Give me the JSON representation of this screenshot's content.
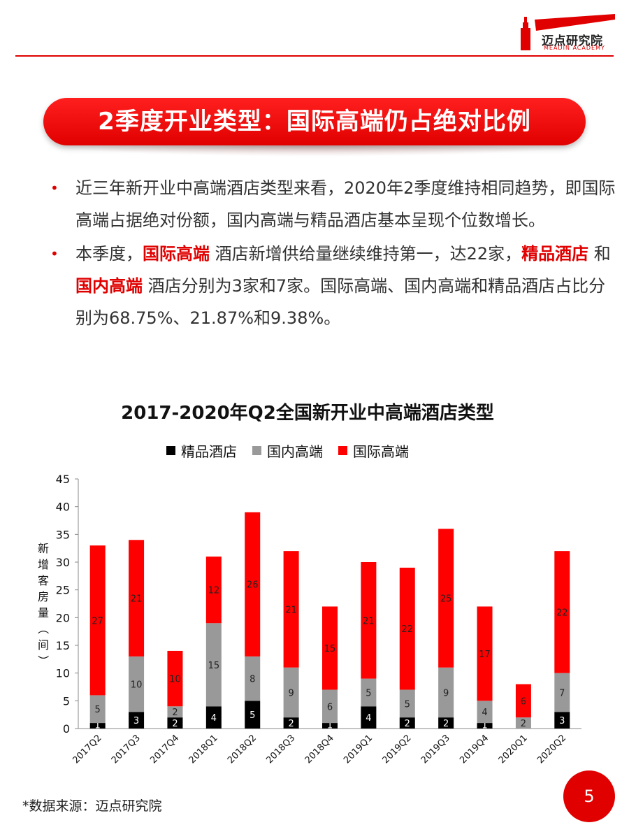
{
  "header": {
    "logo_text": "迈点研究院",
    "logo_sub": "MEADIN ACADEMY"
  },
  "title": "2季度开业类型：国际高端仍占绝对比例",
  "bullets": {
    "b1": "近三年新开业中高端酒店类型来看，2020年2季度维持相同趋势，即国际高端占据绝对份额，国内高端与精品酒店基本呈现个位数增长。",
    "b2_pre": "本季度，",
    "b2_hl1": "国际高端",
    "b2_mid1": " 酒店新增供给量继续维持第一，达22家，",
    "b2_hl2": "精品酒店",
    "b2_mid2": " 和 ",
    "b2_hl3": "国内高端",
    "b2_post": " 酒店分别为3家和7家。国际高端、国内高端和精品酒店占比分别为68.75%、21.87%和9.38%。"
  },
  "chart_data": {
    "type": "bar",
    "stacked": true,
    "title": "2017-2020年Q2全国新开业中高端酒店类型",
    "ylabel": "新增客房量（间）",
    "xlabel": "",
    "ylim": [
      0,
      45
    ],
    "yticks": [
      0,
      5,
      10,
      15,
      20,
      25,
      30,
      35,
      40,
      45
    ],
    "categories": [
      "2017Q2",
      "2017Q3",
      "2017Q4",
      "2018Q1",
      "2018Q2",
      "2018Q3",
      "2018Q4",
      "2019Q1",
      "2019Q2",
      "2019Q3",
      "2019Q4",
      "2020Q1",
      "2020Q2"
    ],
    "series": [
      {
        "name": "精品酒店",
        "color": "#000000",
        "values": [
          1,
          3,
          2,
          4,
          5,
          2,
          1,
          4,
          2,
          2,
          1,
          0,
          3
        ],
        "labels": [
          "1",
          "3",
          "2",
          "4",
          "5",
          "2",
          "1",
          "4",
          "2",
          "2",
          "1",
          "",
          "3"
        ]
      },
      {
        "name": "国内高端",
        "color": "#999999",
        "values": [
          5,
          10,
          2,
          15,
          8,
          9,
          6,
          5,
          5,
          9,
          4,
          2,
          7
        ],
        "labels": [
          "5",
          "10",
          "2",
          "15",
          "8",
          "9",
          "6",
          "5",
          "5",
          "9",
          "4",
          "2",
          "7"
        ]
      },
      {
        "name": "国际高端",
        "color": "#ff0000",
        "values": [
          27,
          21,
          10,
          12,
          26,
          21,
          15,
          21,
          22,
          25,
          17,
          6,
          22
        ],
        "labels": [
          "27",
          "21",
          "10",
          "12",
          "26",
          "21",
          "15",
          "21",
          "22",
          "25",
          "17",
          "6",
          "22"
        ]
      }
    ],
    "legend_position": "top",
    "grid": false
  },
  "footer": {
    "source": "*数据来源：迈点研究院",
    "page_number": "5"
  }
}
